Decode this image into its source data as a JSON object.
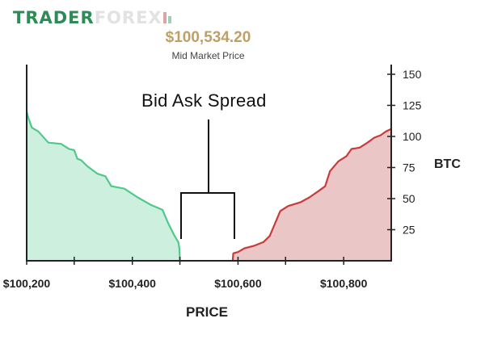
{
  "brand": {
    "part1": "TRADER",
    "part2": "FOREX"
  },
  "mid_market": {
    "price": "$100,534.20",
    "label": "Mid Market Price"
  },
  "annotation": {
    "spread_label": "Bid Ask Spread"
  },
  "colors": {
    "bid_line": "#4fc98a",
    "bid_fill": "#cdf0de",
    "ask_line": "#c93b3b",
    "ask_fill": "#ebc6c6",
    "axis": "#222222",
    "mid_price": "#c0a062"
  },
  "chart_data": {
    "type": "area",
    "xlabel": "PRICE",
    "ylabel": "BTC",
    "xlim": [
      100200,
      100890
    ],
    "ylim": [
      0,
      150
    ],
    "x_ticks": [
      100200,
      100400,
      100600,
      100800
    ],
    "x_tick_labels": [
      "$100,200",
      "$100,400",
      "$100,600",
      "$100,800"
    ],
    "x_minor_ticks": [
      100290,
      100490,
      100690
    ],
    "y_ticks": [
      25,
      50,
      75,
      100,
      125,
      150
    ],
    "y_tick_labels": [
      "25",
      "50",
      "75",
      "100",
      "125",
      "150"
    ],
    "grid": false,
    "legend": "none",
    "series": [
      {
        "x": [
          100200,
          100203,
          100210,
          100222,
          100241,
          100265,
          100280,
          100290,
          100296,
          100303,
          100315,
          100334,
          100349,
          100360,
          100385,
          100410,
          100435,
          100457,
          100468,
          100480,
          100487,
          100489,
          100490
        ],
        "y": [
          120,
          115,
          107,
          104,
          95,
          94,
          90,
          89,
          82,
          81,
          76,
          70,
          68,
          60,
          58,
          51,
          45,
          41,
          30,
          20,
          15,
          10,
          0
        ]
      },
      {
        "x": [
          100590,
          100591,
          100600,
          100612,
          100630,
          100648,
          100660,
          100668,
          100680,
          100695,
          100718,
          100735,
          100752,
          100765,
          100774,
          100790,
          100805,
          100815,
          100830,
          100845,
          100858,
          100870,
          100880,
          100890
        ],
        "y": [
          0,
          6,
          7,
          10,
          12,
          15,
          20,
          28,
          40,
          44,
          47,
          51,
          56,
          60,
          72,
          80,
          84,
          90,
          91,
          95,
          99,
          101,
          104,
          106
        ]
      }
    ]
  }
}
